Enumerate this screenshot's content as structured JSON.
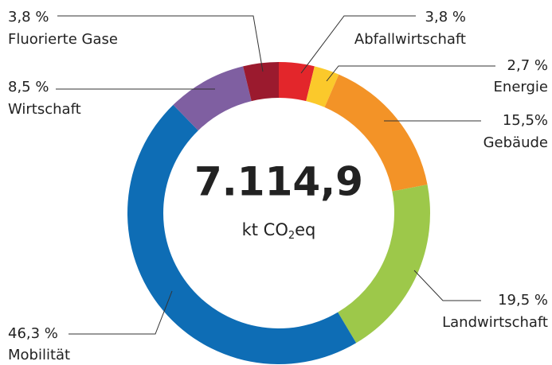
{
  "chart_data": {
    "type": "donut",
    "center_text": "7.114,9",
    "center_unit": [
      "kt CO",
      "2",
      "eq"
    ],
    "categories": [
      "Abfallwirtschaft",
      "Energie",
      "Gebäude",
      "Landwirtschaft",
      "Mobilität",
      "Wirtschaft",
      "Fluorierte Gase"
    ],
    "values": [
      3.8,
      2.7,
      15.5,
      19.5,
      46.3,
      8.5,
      3.8
    ],
    "value_labels": [
      "3,8 %",
      "2,7 %",
      "15,5%",
      "19,5 %",
      "46,3 %",
      "8,5 %",
      "3,8 %"
    ],
    "colors": [
      "#e3262b",
      "#fbc92b",
      "#f39327",
      "#9dc84a",
      "#0e6db5",
      "#7f5fa1",
      "#9b1a2e"
    ]
  }
}
